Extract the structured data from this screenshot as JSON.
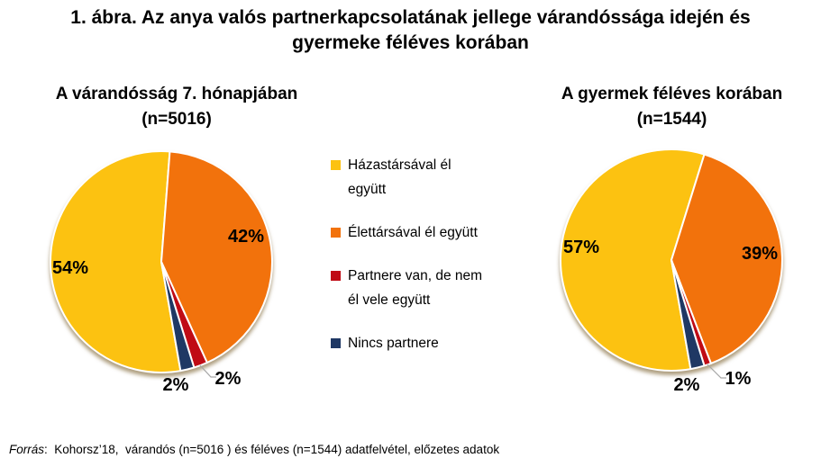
{
  "figure_title": "1. ábra. Az anya valós partnerkapcsolatának jellege várandóssága idején és gyermeke féléves korában",
  "panels": [
    {
      "title": "A várandósság 7. hónapjában",
      "n": "(n=5016)"
    },
    {
      "title": "A gyermek féléves korában",
      "n": "(n=1544)"
    }
  ],
  "legend": {
    "items": [
      {
        "label": "Házastársával él együtt",
        "color": "#FCC211"
      },
      {
        "label": "Élettársával él együtt",
        "color": "#F2720C"
      },
      {
        "label": "Partnere van, de nem él vele együtt",
        "color": "#C00B15"
      },
      {
        "label": "Nincs partnere",
        "color": "#1F3864"
      }
    ]
  },
  "footer": {
    "source_label": "Forrás",
    "source_rest": ":  Kohorsz’18,  várandós (n=5016 ) és féléves (n=1544) adatfelvétel, előzetes adatok"
  },
  "chart_data": [
    {
      "type": "pie",
      "title": "A várandósság 7. hónapjában (n=5016)",
      "categories": [
        "Házastársával él együtt",
        "Élettársával él együtt",
        "Partnere van, de nem él vele együtt",
        "Nincs partnere"
      ],
      "values": [
        54,
        42,
        2,
        2
      ],
      "labels": [
        "54%",
        "42%",
        "2%",
        "2%"
      ],
      "unit": "percent",
      "colors": [
        "#FCC211",
        "#F2720C",
        "#C00B15",
        "#1F3864"
      ],
      "start_angle_deg": 170,
      "direction": "clockwise",
      "slice_borders": "white",
      "legend_position": "between-pies"
    },
    {
      "type": "pie",
      "title": "A gyermek féléves korában (n=1544)",
      "categories": [
        "Házastársával él együtt",
        "Élettársával él együtt",
        "Partnere van, de nem él vele együtt",
        "Nincs partnere"
      ],
      "values": [
        57,
        39,
        1,
        2
      ],
      "labels": [
        "57%",
        "39%",
        "1%",
        "2%"
      ],
      "unit": "percent",
      "colors": [
        "#FCC211",
        "#F2720C",
        "#C00B15",
        "#1F3864"
      ],
      "start_angle_deg": 170,
      "direction": "clockwise",
      "slice_borders": "white",
      "legend_position": "between-pies"
    }
  ]
}
